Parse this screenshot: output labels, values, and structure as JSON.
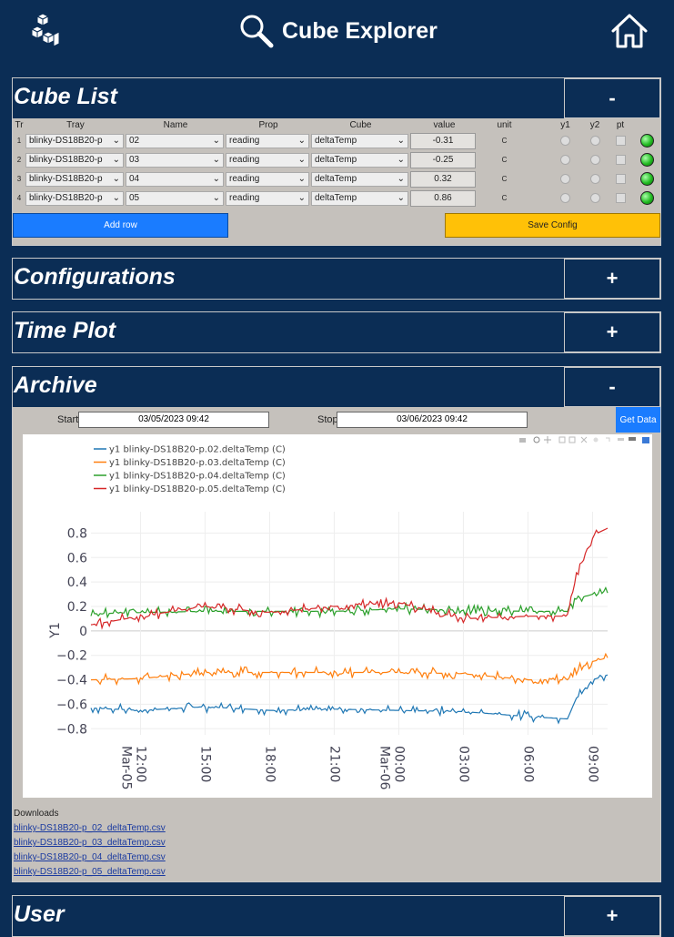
{
  "app": {
    "title": "Cube Explorer"
  },
  "sections": {
    "cube_list": {
      "title": "Cube List",
      "toggle": "-"
    },
    "configurations": {
      "title": "Configurations",
      "toggle": "+"
    },
    "time_plot": {
      "title": "Time Plot",
      "toggle": "+"
    },
    "archive": {
      "title": "Archive",
      "toggle": "-"
    },
    "user": {
      "title": "User",
      "toggle": "+"
    }
  },
  "cube_table": {
    "headers": {
      "tr": "Tr",
      "tray": "Tray",
      "name": "Name",
      "prop": "Prop",
      "cube": "Cube",
      "value": "value",
      "unit": "unit",
      "y1": "y1",
      "y2": "y2",
      "pt": "pt"
    },
    "rows": [
      {
        "tr": "1",
        "tray": "blinky-DS18B20-p",
        "name": "02",
        "prop": "reading",
        "cube": "deltaTemp",
        "value": "-0.31",
        "unit": "C"
      },
      {
        "tr": "2",
        "tray": "blinky-DS18B20-p",
        "name": "03",
        "prop": "reading",
        "cube": "deltaTemp",
        "value": "-0.25",
        "unit": "C"
      },
      {
        "tr": "3",
        "tray": "blinky-DS18B20-p",
        "name": "04",
        "prop": "reading",
        "cube": "deltaTemp",
        "value": "0.32",
        "unit": "C"
      },
      {
        "tr": "4",
        "tray": "blinky-DS18B20-p",
        "name": "05",
        "prop": "reading",
        "cube": "deltaTemp",
        "value": "0.86",
        "unit": "C"
      }
    ],
    "add_row_label": "Add row",
    "save_config_label": "Save Config"
  },
  "archive": {
    "start_label": "Start",
    "start_value": "03/05/2023 09:42",
    "stop_label": "Stop",
    "stop_value": "03/06/2023 09:42",
    "get_data_label": "Get Data",
    "downloads_label": "Downloads",
    "downloads": [
      "blinky-DS18B20-p_02_deltaTemp.csv",
      "blinky-DS18B20-p_03_deltaTemp.csv",
      "blinky-DS18B20-p_04_deltaTemp.csv",
      "blinky-DS18B20-p_05_deltaTemp.csv"
    ]
  },
  "colors": {
    "background": "#0b2d55",
    "panel": "#c5c1bc",
    "add_button": "#1a7cff",
    "save_button": "#ffc107",
    "led": "#22bb22"
  },
  "chart_data": {
    "type": "line",
    "ylabel": "Y1",
    "ylim": [
      -0.85,
      0.9
    ],
    "yticks": [
      0.8,
      0.6,
      0.4,
      0.2,
      0,
      -0.2,
      -0.4,
      -0.6,
      -0.8
    ],
    "ytick_labels": [
      "0.8",
      "0.6",
      "0.4",
      "0.2",
      "0",
      "−0.2",
      "−0.4",
      "−0.6",
      "−0.8"
    ],
    "xlim": [
      "2023-03-05 09:42",
      "2023-03-06 09:42"
    ],
    "xticks": [
      "2023-03-05 12:00",
      "2023-03-05 15:00",
      "2023-03-05 18:00",
      "2023-03-05 21:00",
      "2023-03-06 00:00",
      "2023-03-06 03:00",
      "2023-03-06 06:00",
      "2023-03-06 09:00"
    ],
    "xtick_labels": [
      "12:00",
      "15:00",
      "18:00",
      "21:00",
      "00:00",
      "03:00",
      "06:00",
      "09:00"
    ],
    "xtick_sublabels": [
      "Mar-05",
      "",
      "",
      "",
      "Mar-06",
      "",
      "",
      ""
    ],
    "legend_position": "top-left",
    "grid": true,
    "series": [
      {
        "name": "y1 blinky-DS18B20-p.02.deltaTemp (C)",
        "color": "#1f77b4",
        "x": [
          "2023-03-05 09:42",
          "2023-03-05 12:00",
          "2023-03-05 15:00",
          "2023-03-05 18:00",
          "2023-03-05 21:00",
          "2023-03-06 00:00",
          "2023-03-06 03:00",
          "2023-03-06 06:00",
          "2023-03-06 07:50",
          "2023-03-06 08:15",
          "2023-03-06 09:00",
          "2023-03-06 09:42"
        ],
        "values": [
          -0.63,
          -0.65,
          -0.62,
          -0.65,
          -0.64,
          -0.65,
          -0.66,
          -0.7,
          -0.72,
          -0.55,
          -0.4,
          -0.36
        ]
      },
      {
        "name": "y1 blinky-DS18B20-p.03.deltaTemp (C)",
        "color": "#ff7f0e",
        "x": [
          "2023-03-05 09:42",
          "2023-03-05 12:00",
          "2023-03-05 15:00",
          "2023-03-05 18:00",
          "2023-03-05 21:00",
          "2023-03-06 00:00",
          "2023-03-06 03:00",
          "2023-03-06 06:00",
          "2023-03-06 07:50",
          "2023-03-06 08:15",
          "2023-03-06 09:00",
          "2023-03-06 09:42"
        ],
        "values": [
          -0.4,
          -0.39,
          -0.34,
          -0.34,
          -0.34,
          -0.34,
          -0.35,
          -0.4,
          -0.4,
          -0.32,
          -0.25,
          -0.22
        ]
      },
      {
        "name": "y1 blinky-DS18B20-p.04.deltaTemp (C)",
        "color": "#2ca02c",
        "x": [
          "2023-03-05 09:42",
          "2023-03-05 12:00",
          "2023-03-05 15:00",
          "2023-03-05 18:00",
          "2023-03-05 21:00",
          "2023-03-06 00:00",
          "2023-03-06 03:00",
          "2023-03-06 06:00",
          "2023-03-06 07:50",
          "2023-03-06 08:15",
          "2023-03-06 09:00",
          "2023-03-06 09:42"
        ],
        "values": [
          0.14,
          0.15,
          0.16,
          0.16,
          0.16,
          0.18,
          0.17,
          0.16,
          0.16,
          0.26,
          0.3,
          0.31
        ]
      },
      {
        "name": "y1 blinky-DS18B20-p.05.deltaTemp (C)",
        "color": "#d62728",
        "x": [
          "2023-03-05 09:42",
          "2023-03-05 12:00",
          "2023-03-05 15:00",
          "2023-03-05 18:00",
          "2023-03-05 21:00",
          "2023-03-06 00:00",
          "2023-03-06 03:00",
          "2023-03-06 06:00",
          "2023-03-06 07:50",
          "2023-03-06 08:15",
          "2023-03-06 09:00",
          "2023-03-06 09:42"
        ],
        "values": [
          0.05,
          0.12,
          0.2,
          0.15,
          0.2,
          0.23,
          0.1,
          0.12,
          0.12,
          0.45,
          0.78,
          0.84
        ]
      }
    ]
  }
}
